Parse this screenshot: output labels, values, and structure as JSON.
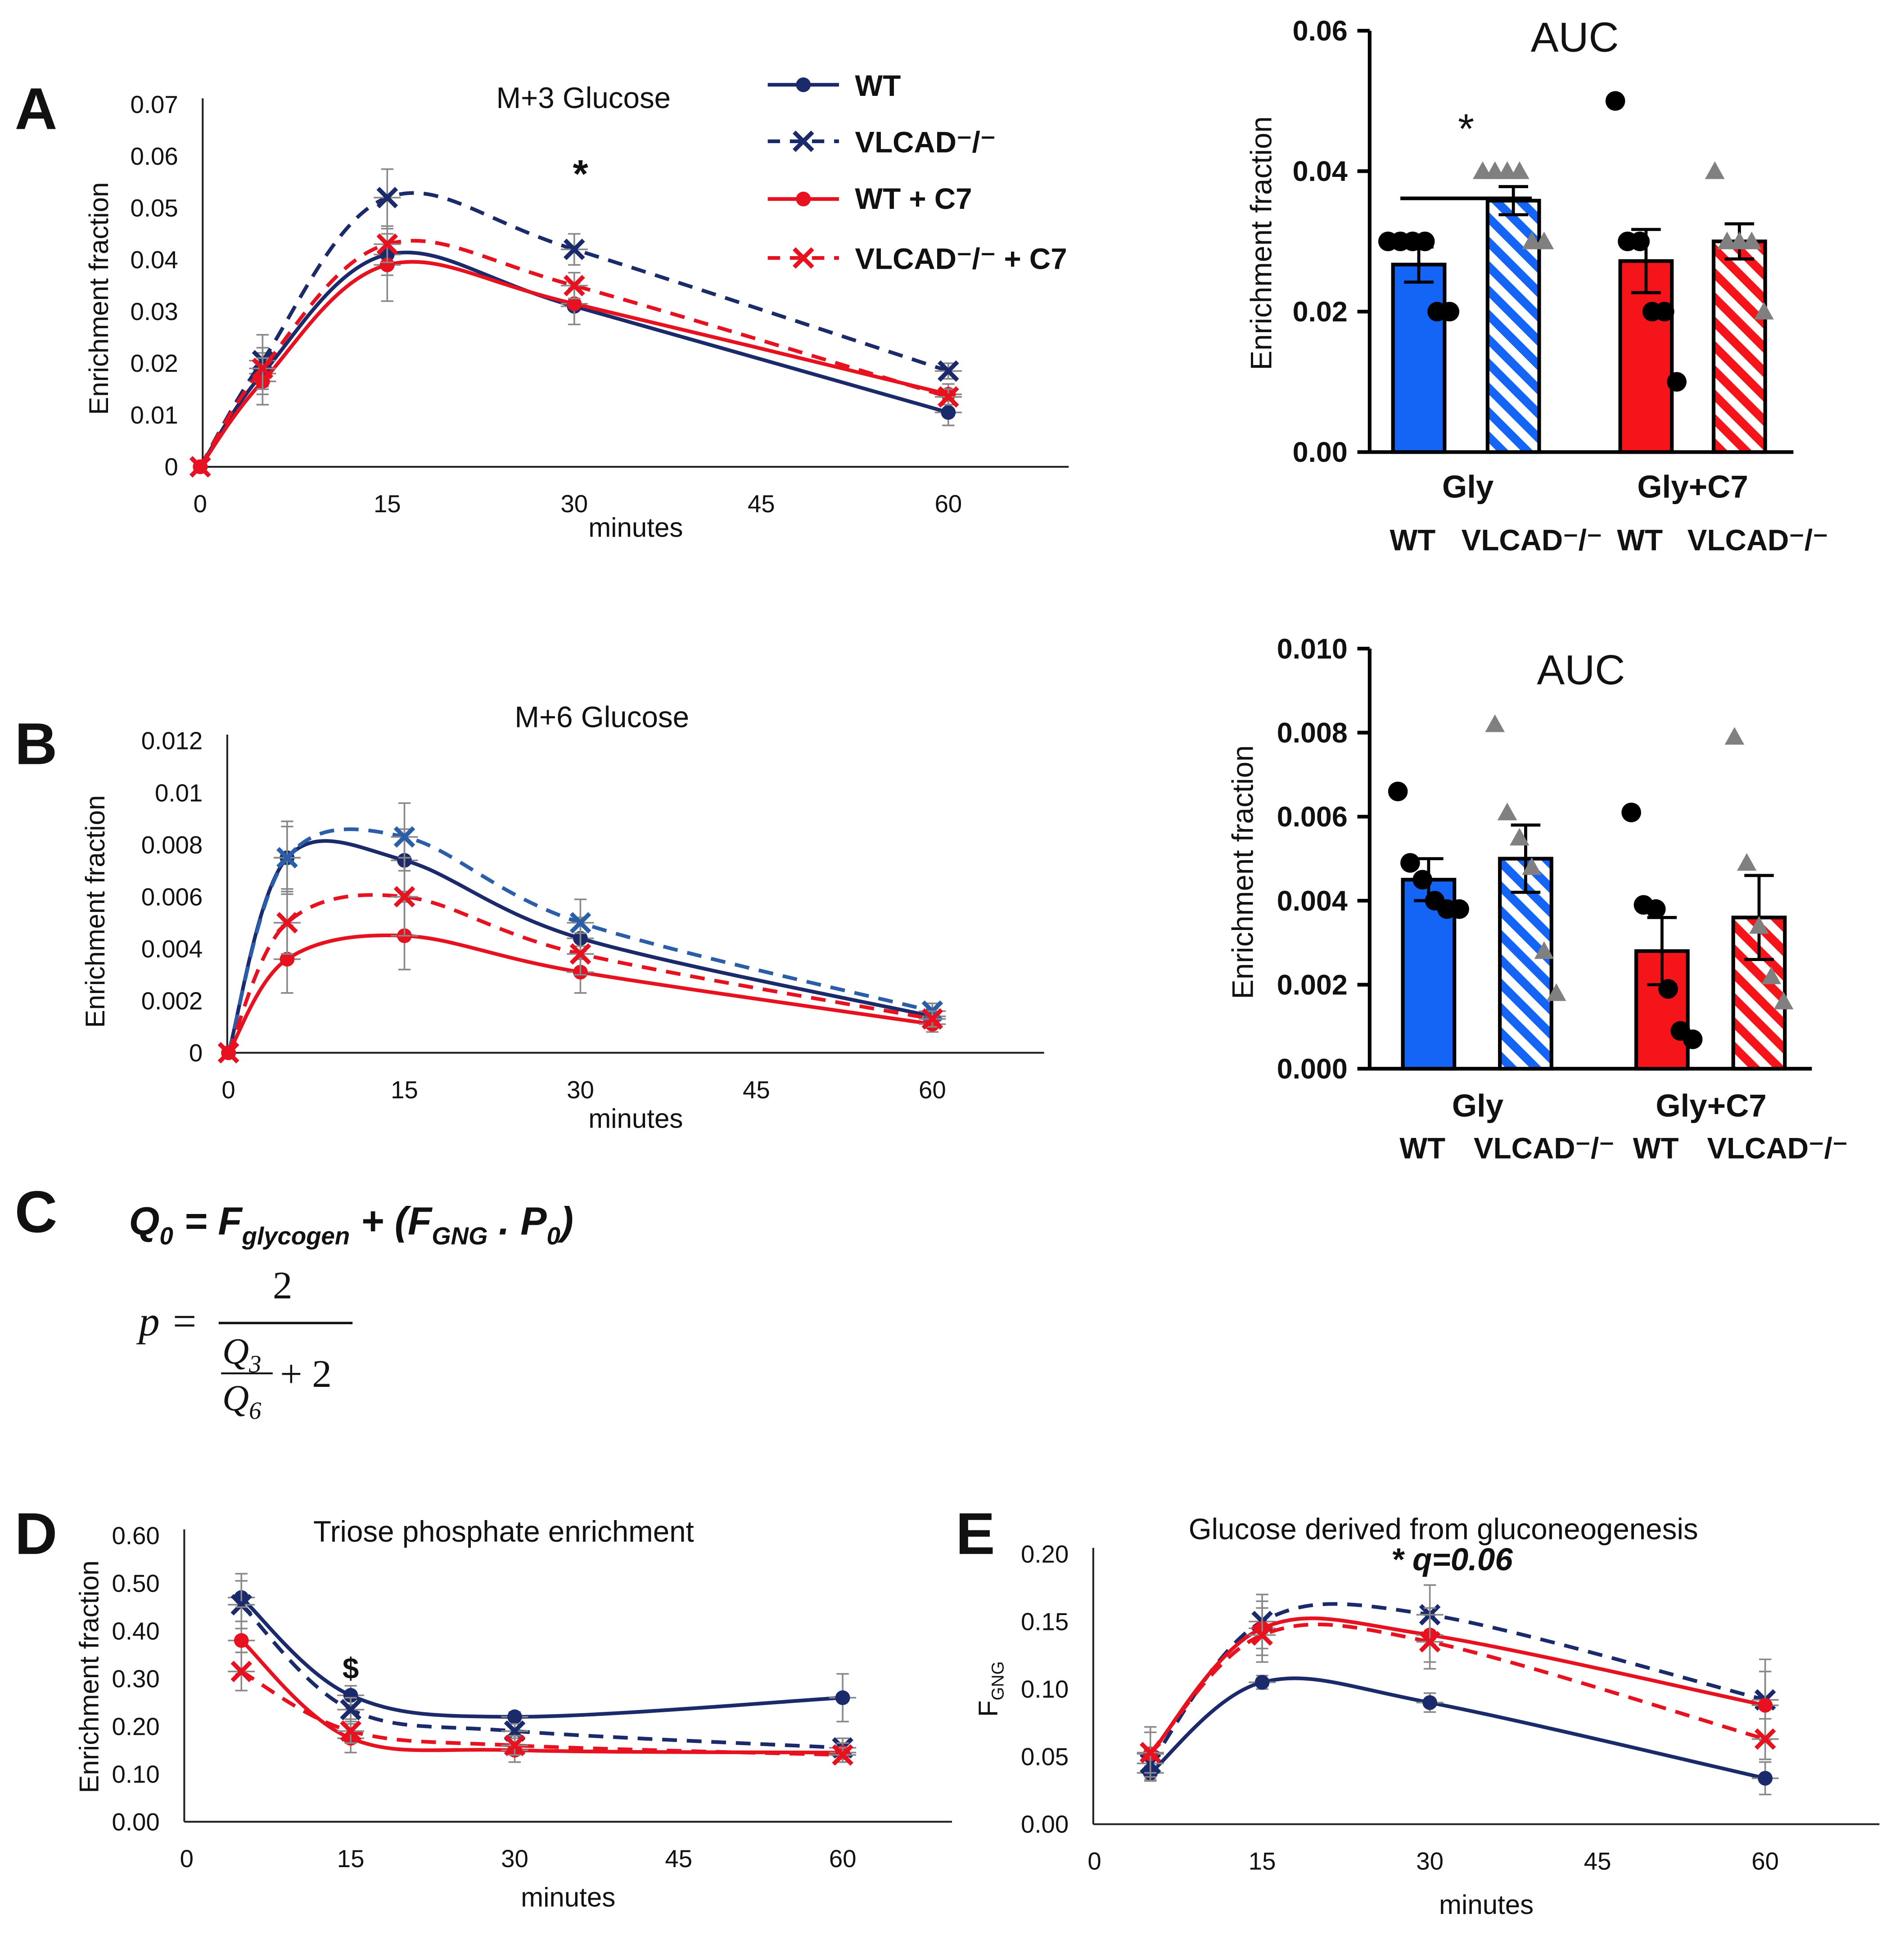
{
  "colors": {
    "navy": "#1b2a6b",
    "red": "#e8111f",
    "blue_bar": "#1464f5",
    "red_bar": "#f5141a",
    "grey": "#808080",
    "black": "#000000"
  },
  "legend": {
    "items": [
      {
        "label": "WT",
        "style": "solid",
        "marker": "dot",
        "color": "#1b2a6b"
      },
      {
        "label": "VLCAD⁻/⁻",
        "style": "dashed",
        "marker": "x",
        "color": "#1b2a6b"
      },
      {
        "label": "WT + C7",
        "style": "solid",
        "marker": "dot",
        "color": "#e8111f"
      },
      {
        "label": "VLCAD⁻/⁻ + C7",
        "style": "dashed",
        "marker": "x",
        "color": "#e8111f"
      }
    ]
  },
  "panels": {
    "A": "A",
    "B": "B",
    "C": "C",
    "D": "D",
    "E": "E"
  },
  "formula": {
    "q0_line": "Q0 = Fglycogen + (FGNG . P0)",
    "p_lhs": "p =",
    "p_num": "2",
    "p_den_q3": "Q3",
    "p_den_q6": "Q6",
    "p_den_plus": "+ 2"
  },
  "chart_data": [
    {
      "id": "A_line",
      "type": "line",
      "title": "M+3 Glucose",
      "xlabel": "minutes",
      "ylabel": "Enrichment fraction",
      "xlim": [
        0,
        70
      ],
      "ylim": [
        0,
        0.07
      ],
      "xticks": [
        0,
        15,
        30,
        45,
        60
      ],
      "yticks": [
        0,
        0.01,
        0.02,
        0.03,
        0.04,
        0.05,
        0.06,
        0.07
      ],
      "ytick_labels": [
        "0",
        "0.01",
        "0.02",
        "0.03",
        "0.04",
        "0.05",
        "0.06",
        "0.07"
      ],
      "x": [
        0,
        5,
        15,
        30,
        60
      ],
      "annotations": [
        {
          "text": "*",
          "x": 30.5,
          "y": 0.054
        }
      ],
      "series": [
        {
          "name": "WT",
          "values": [
            0,
            0.018,
            0.041,
            0.031,
            0.0105
          ],
          "err": [
            0,
            0.004,
            0.004,
            0.0035,
            0.0025
          ],
          "color": "#1b2a6b",
          "dash": false,
          "marker": "dot"
        },
        {
          "name": "VLCAD⁻/⁻",
          "values": [
            0,
            0.0205,
            0.052,
            0.042,
            0.0185
          ],
          "err": [
            0,
            0.005,
            0.0055,
            0.003,
            0.0015
          ],
          "color": "#1b2a6b",
          "dash": true,
          "marker": "x"
        },
        {
          "name": "WT + C7",
          "values": [
            0,
            0.0165,
            0.039,
            0.0315,
            0.014
          ],
          "err": [
            0,
            0.0045,
            0.007,
            0.004,
            0.002
          ],
          "color": "#e8111f",
          "dash": false,
          "marker": "dot"
        },
        {
          "name": "VLCAD⁻/⁻ + C7",
          "values": [
            0,
            0.019,
            0.043,
            0.035,
            0.0135
          ],
          "err": [
            0,
            0.004,
            0.0035,
            0.0025,
            0.0015
          ],
          "color": "#e8111f",
          "dash": true,
          "marker": "x"
        }
      ]
    },
    {
      "id": "A_bar",
      "type": "bar",
      "title": "AUC",
      "ylabel": "Enrichment fraction",
      "ylim": [
        0,
        0.06
      ],
      "yticks": [
        0,
        0.02,
        0.04,
        0.06
      ],
      "ytick_labels": [
        "0.00",
        "0.02",
        "0.04",
        "0.06"
      ],
      "groups": [
        "Gly",
        "Gly+C7"
      ],
      "categories": [
        "WT",
        "VLCAD⁻/⁻",
        "WT",
        "VLCAD⁻/⁻"
      ],
      "values": [
        0.0267,
        0.0358,
        0.0272,
        0.03
      ],
      "err": [
        0.0025,
        0.002,
        0.0045,
        0.0025
      ],
      "fills": [
        "#1464f5",
        "#1464f5",
        "#f5141a",
        "#f5141a"
      ],
      "hatched": [
        false,
        true,
        false,
        true
      ],
      "points": [
        [
          0.03,
          0.03,
          0.03,
          0.03,
          0.02,
          0.02
        ],
        [
          0.04,
          0.04,
          0.04,
          0.04,
          0.03,
          0.03
        ],
        [
          0.05,
          0.03,
          0.03,
          0.02,
          0.02,
          0.01
        ],
        [
          0.04,
          0.03,
          0.03,
          0.03,
          0.02
        ]
      ],
      "point_markers": [
        "dot",
        "tri",
        "dot",
        "tri"
      ],
      "annotations": [
        {
          "text": "*",
          "between": [
            0,
            1
          ],
          "y": 0.044
        }
      ]
    },
    {
      "id": "B_line",
      "type": "line",
      "title": "M+6 Glucose",
      "xlabel": "minutes",
      "ylabel": "Enrichment fraction",
      "xlim": [
        0,
        70
      ],
      "ylim": [
        0,
        0.012
      ],
      "xticks": [
        0,
        15,
        30,
        45,
        60
      ],
      "yticks": [
        0,
        0.002,
        0.004,
        0.006,
        0.008,
        0.01,
        0.012
      ],
      "ytick_labels": [
        "0",
        "0.002",
        "0.004",
        "0.006",
        "0.008",
        "0.01",
        "0.012"
      ],
      "x": [
        0,
        5,
        15,
        30,
        60
      ],
      "annotations": [],
      "series": [
        {
          "name": "WT",
          "values": [
            0,
            0.0075,
            0.0074,
            0.0044,
            0.0014
          ],
          "err": [
            0,
            0.0014,
            0.0012,
            0.0008,
            0.0003
          ],
          "color": "#1b2a6b",
          "dash": false,
          "marker": "dot"
        },
        {
          "name": "VLCAD⁻/⁻",
          "values": [
            0,
            0.0075,
            0.0083,
            0.005,
            0.0016
          ],
          "err": [
            0,
            0.0012,
            0.0013,
            0.0009,
            0.0003
          ],
          "color": "#2a5ea8",
          "dash": true,
          "marker": "x"
        },
        {
          "name": "WT + C7",
          "values": [
            0,
            0.0036,
            0.0045,
            0.0031,
            0.0011
          ],
          "err": [
            0,
            0.0013,
            0.0013,
            0.0008,
            0.0003
          ],
          "color": "#e8111f",
          "dash": false,
          "marker": "dot"
        },
        {
          "name": "VLCAD⁻/⁻ + C7",
          "values": [
            0,
            0.005,
            0.006,
            0.0038,
            0.0013
          ],
          "err": [
            0,
            0.0012,
            0.0015,
            0.0008,
            0.0003
          ],
          "color": "#e8111f",
          "dash": true,
          "marker": "x"
        }
      ]
    },
    {
      "id": "B_bar",
      "type": "bar",
      "title": "AUC",
      "ylabel": "Enrichment fraction",
      "ylim": [
        0,
        0.01
      ],
      "yticks": [
        0,
        0.002,
        0.004,
        0.006,
        0.008,
        0.01
      ],
      "ytick_labels": [
        "0.000",
        "0.002",
        "0.004",
        "0.006",
        "0.008",
        "0.010"
      ],
      "groups": [
        "Gly",
        "Gly+C7"
      ],
      "categories": [
        "WT",
        "VLCAD⁻/⁻",
        "WT",
        "VLCAD⁻/⁻"
      ],
      "values": [
        0.0045,
        0.005,
        0.0028,
        0.0036
      ],
      "err": [
        0.0005,
        0.0008,
        0.0008,
        0.001
      ],
      "fills": [
        "#1464f5",
        "#1464f5",
        "#f5141a",
        "#f5141a"
      ],
      "hatched": [
        false,
        true,
        false,
        true
      ],
      "points": [
        [
          0.0066,
          0.0049,
          0.0045,
          0.004,
          0.0038,
          0.0038
        ],
        [
          0.0082,
          0.0061,
          0.0055,
          0.0048,
          0.0028,
          0.0018
        ],
        [
          0.0061,
          0.0039,
          0.0038,
          0.0019,
          0.0009,
          0.0007
        ],
        [
          0.0079,
          0.0049,
          0.0034,
          0.0022,
          0.0016
        ]
      ],
      "point_markers": [
        "dot",
        "tri",
        "dot",
        "tri"
      ],
      "annotations": []
    },
    {
      "id": "D_line",
      "type": "line",
      "title": "Triose phosphate enrichment",
      "xlabel": "minutes",
      "ylabel": "Enrichment fraction",
      "xlim": [
        0,
        70
      ],
      "ylim": [
        0,
        0.6
      ],
      "xticks": [
        0,
        15,
        30,
        45,
        60
      ],
      "yticks": [
        0,
        0.1,
        0.2,
        0.3,
        0.4,
        0.5,
        0.6
      ],
      "ytick_labels": [
        "0.00",
        "0.10",
        "0.20",
        "0.30",
        "0.40",
        "0.50",
        "0.60"
      ],
      "x": [
        5,
        15,
        30,
        60
      ],
      "annotations": [
        {
          "text": "$",
          "x": 15,
          "y": 0.3
        }
      ],
      "series": [
        {
          "name": "WT",
          "values": [
            0.47,
            0.265,
            0.22,
            0.26
          ],
          "err": [
            0.05,
            0.02,
            0.01,
            0.05
          ],
          "color": "#1b2a6b",
          "dash": false,
          "marker": "dot"
        },
        {
          "name": "VLCAD⁻/⁻",
          "values": [
            0.455,
            0.235,
            0.19,
            0.155
          ],
          "err": [
            0.05,
            0.025,
            0.015,
            0.02
          ],
          "color": "#1b2a6b",
          "dash": true,
          "marker": "x"
        },
        {
          "name": "WT + C7",
          "values": [
            0.38,
            0.175,
            0.15,
            0.145
          ],
          "err": [
            0.07,
            0.03,
            0.025,
            0.02
          ],
          "color": "#e8111f",
          "dash": false,
          "marker": "dot"
        },
        {
          "name": "VLCAD⁻/⁻ + C7",
          "values": [
            0.315,
            0.19,
            0.16,
            0.14
          ],
          "err": [
            0.04,
            0.025,
            0.02,
            0.015
          ],
          "color": "#e8111f",
          "dash": true,
          "marker": "x"
        }
      ]
    },
    {
      "id": "E_line",
      "type": "line",
      "title": "Glucose derived from gluconeogenesis",
      "xlabel": "minutes",
      "ylabel": "FGNG",
      "xlim": [
        0,
        70
      ],
      "ylim": [
        0,
        0.2
      ],
      "xticks": [
        0,
        15,
        30,
        45,
        60
      ],
      "yticks": [
        0,
        0.05,
        0.1,
        0.15,
        0.2
      ],
      "ytick_labels": [
        "0.00",
        "0.05",
        "0.10",
        "0.15",
        "0.20"
      ],
      "x": [
        5,
        15,
        30,
        60
      ],
      "annotations": [
        {
          "text": "* q=0.06",
          "x": 30,
          "y": 0.188
        }
      ],
      "series": [
        {
          "name": "WT",
          "values": [
            0.038,
            0.105,
            0.09,
            0.034
          ],
          "err": [
            0.005,
            0.005,
            0.007,
            0.012
          ],
          "color": "#1b2a6b",
          "dash": false,
          "marker": "dot"
        },
        {
          "name": "VLCAD⁻/⁻",
          "values": [
            0.045,
            0.15,
            0.155,
            0.092
          ],
          "err": [
            0.01,
            0.02,
            0.022,
            0.03
          ],
          "color": "#1b2a6b",
          "dash": true,
          "marker": "x"
        },
        {
          "name": "WT + C7",
          "values": [
            0.052,
            0.145,
            0.14,
            0.088
          ],
          "err": [
            0.02,
            0.02,
            0.02,
            0.025
          ],
          "color": "#e8111f",
          "dash": false,
          "marker": "dot"
        },
        {
          "name": "VLCAD⁻/⁻ + C7",
          "values": [
            0.053,
            0.14,
            0.135,
            0.063
          ],
          "err": [
            0.015,
            0.02,
            0.02,
            0.015
          ],
          "color": "#e8111f",
          "dash": true,
          "marker": "x"
        }
      ]
    }
  ]
}
